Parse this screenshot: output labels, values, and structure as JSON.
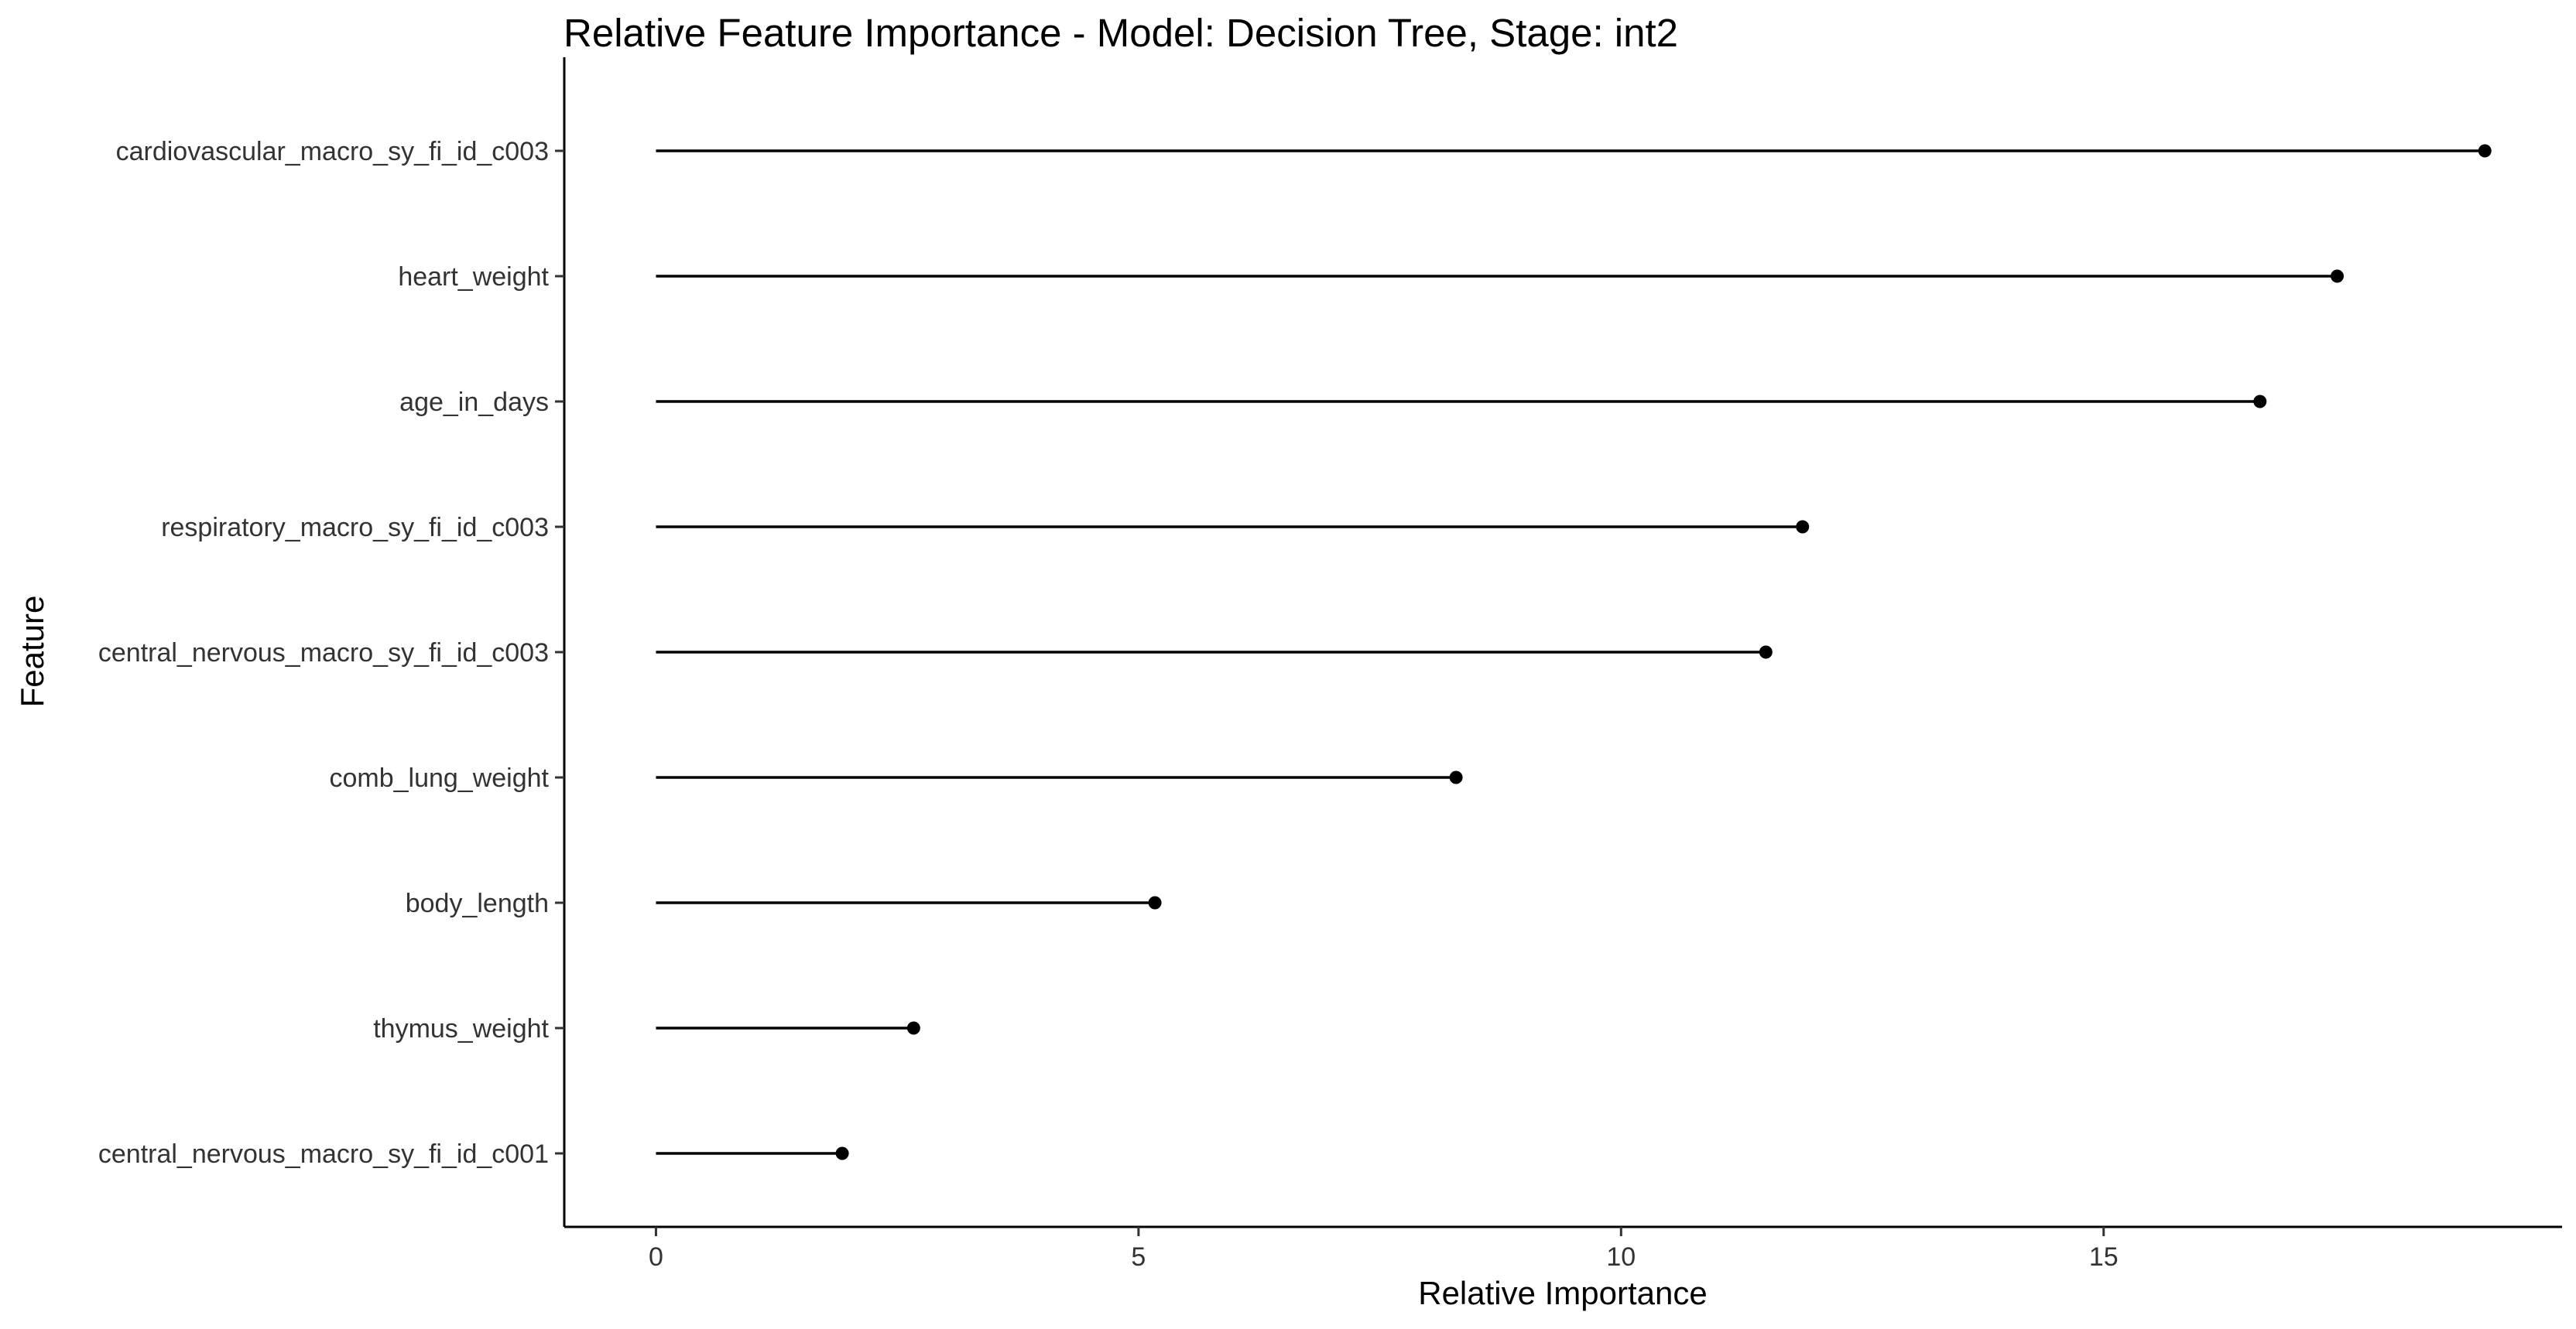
{
  "chart_data": {
    "type": "lollipop",
    "title": "Relative Feature Importance - Model: Decision Tree, Stage: int2",
    "xlabel": "Relative Importance",
    "ylabel": "Feature",
    "xlim": [
      -0.95,
      19.75
    ],
    "xticks": [
      0,
      5,
      10,
      15
    ],
    "xtick_labels": [
      "0",
      "5",
      "10",
      "15"
    ],
    "grid": false,
    "legend": "none",
    "color": "#000000",
    "categories": [
      "cardiovascular_macro_sy_fi_id_c003",
      "heart_weight",
      "age_in_days",
      "respiratory_macro_sy_fi_id_c003",
      "central_nervous_macro_sy_fi_id_c003",
      "comb_lung_weight",
      "body_length",
      "thymus_weight",
      "central_nervous_macro_sy_fi_id_c001"
    ],
    "values": [
      18.95,
      17.42,
      16.62,
      11.88,
      11.5,
      8.29,
      5.17,
      2.67,
      1.93
    ]
  }
}
